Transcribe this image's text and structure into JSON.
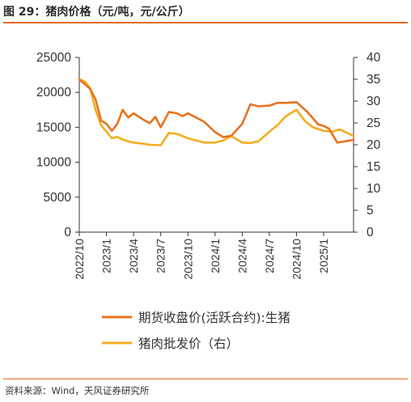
{
  "title": "图 29：猪肉价格（元/吨，元/公斤）",
  "source": "资料来源：Wind，天风证券研究所",
  "chart_data": {
    "type": "line",
    "x_ticks": [
      "2022/10",
      "2023/1",
      "2023/4",
      "2023/7",
      "2023/10",
      "2024/1",
      "2024/4",
      "2024/7",
      "2024/10",
      "2025/1"
    ],
    "y_left": {
      "min": 0,
      "max": 25000,
      "ticks": [
        "0",
        "5000",
        "10000",
        "15000",
        "20000",
        "25000"
      ]
    },
    "y_right": {
      "min": 0,
      "max": 40,
      "ticks": [
        "0",
        "5",
        "10",
        "15",
        "20",
        "25",
        "30",
        "35",
        "40"
      ]
    },
    "grid": false,
    "legend_position": "bottom",
    "series": [
      {
        "name": "期货收盘价(活跃合约):生猪",
        "axis": "left",
        "color": "#e8731f",
        "x": [
          0,
          0.2,
          0.4,
          0.6,
          0.8,
          1.0,
          1.2,
          1.4,
          1.6,
          1.8,
          2.0,
          2.2,
          2.4,
          2.6,
          2.8,
          3.0,
          3.3,
          3.6,
          3.8,
          4.0,
          4.3,
          4.6,
          5.0,
          5.3,
          5.6,
          6.0,
          6.3,
          6.6,
          7.0,
          7.3,
          7.6,
          8.0,
          8.4,
          8.8,
          9.0,
          9.2,
          9.5,
          9.8,
          10.1
        ],
        "values": [
          21800,
          21200,
          20500,
          19000,
          16000,
          15500,
          14500,
          15500,
          17500,
          16400,
          17000,
          16500,
          16000,
          15600,
          16500,
          15000,
          17200,
          17000,
          16600,
          17000,
          16400,
          15800,
          14300,
          13600,
          13800,
          15500,
          18300,
          18000,
          18100,
          18500,
          18500,
          18600,
          17200,
          15400,
          15200,
          14800,
          12800,
          13000,
          13200
        ]
      },
      {
        "name": "猪肉批发价（右）",
        "axis": "right",
        "color": "#f5ad1f",
        "x": [
          0,
          0.2,
          0.4,
          0.6,
          0.8,
          1.0,
          1.2,
          1.4,
          1.6,
          1.8,
          2.0,
          2.3,
          2.6,
          3.0,
          3.3,
          3.6,
          4.0,
          4.3,
          4.6,
          5.0,
          5.3,
          5.6,
          6.0,
          6.3,
          6.6,
          7.0,
          7.3,
          7.6,
          8.0,
          8.3,
          8.6,
          9.0,
          9.3,
          9.6,
          10.1
        ],
        "values": [
          35.0,
          34.5,
          33.0,
          28.0,
          24.5,
          23.0,
          21.5,
          21.8,
          21.2,
          20.8,
          20.5,
          20.3,
          20.0,
          19.9,
          22.7,
          22.5,
          21.5,
          21.0,
          20.5,
          20.5,
          21.0,
          22.0,
          20.5,
          20.4,
          20.8,
          23.0,
          24.5,
          26.5,
          28.0,
          25.5,
          24.0,
          23.2,
          23.0,
          23.5,
          22.0
        ]
      }
    ]
  }
}
